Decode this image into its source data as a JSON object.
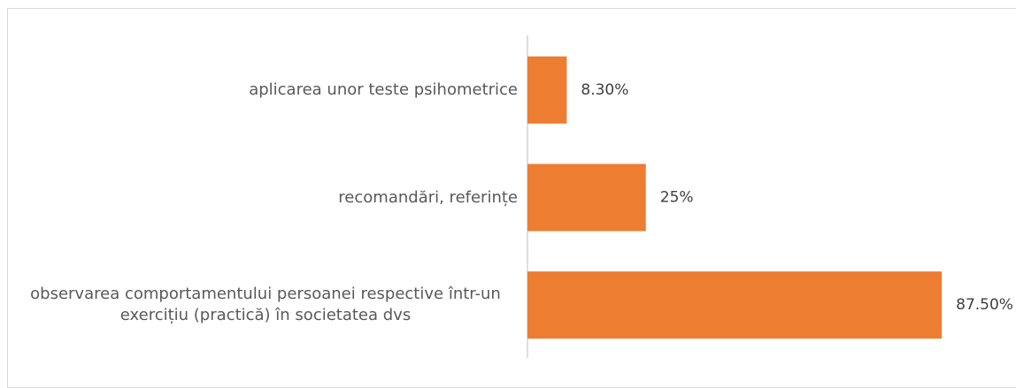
{
  "chart_data": {
    "type": "bar",
    "orientation": "horizontal",
    "categories": [
      "aplicarea unor teste psihometrice",
      "recomandări, referințe",
      "observarea comportamentului persoanei respective într-un exercițiu (practică) în societatea dvs"
    ],
    "values": [
      8.3,
      25,
      87.5
    ],
    "value_labels": [
      "8.30%",
      "25%",
      "87.50%"
    ],
    "color": "#ed7d31"
  }
}
